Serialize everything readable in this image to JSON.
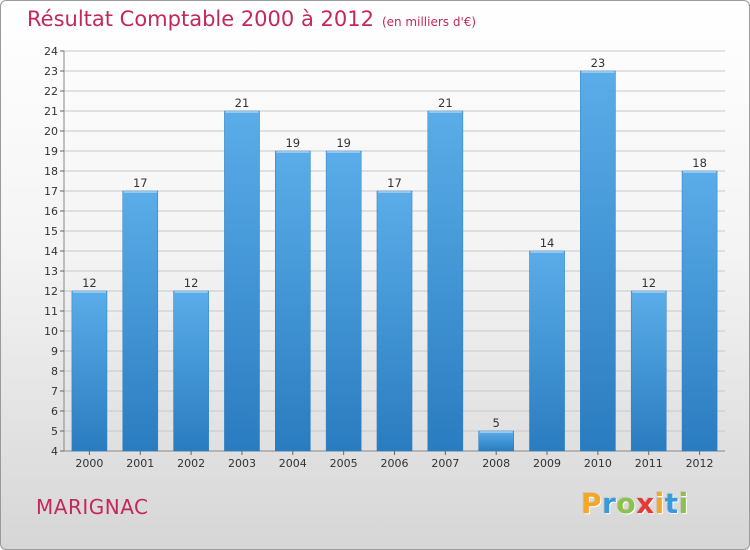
{
  "title": "Résultat Comptable 2000 à 2012",
  "subtitle": "(en milliers d'€)",
  "city": "MARIGNAC",
  "logo": {
    "letters": [
      "P",
      "r",
      "o",
      "x",
      "i",
      "t",
      "i"
    ],
    "colors": [
      "#f5a623",
      "#3a9ad9",
      "#8bc34a",
      "#e53935",
      "#f5a623",
      "#3a9ad9",
      "#8bc34a"
    ]
  },
  "colors": {
    "accent": "#c4275c",
    "bar_light": "#5aade8",
    "bar_dark": "#2a7cc0",
    "grid": "#c8c8c8"
  },
  "chart_data": {
    "type": "bar",
    "title": "Résultat Comptable 2000 à 2012",
    "subtitle": "(en milliers d'€)",
    "categories": [
      "2000",
      "2001",
      "2002",
      "2003",
      "2004",
      "2005",
      "2006",
      "2007",
      "2008",
      "2009",
      "2010",
      "2011",
      "2012"
    ],
    "values": [
      12,
      17,
      12,
      21,
      19,
      19,
      17,
      21,
      5,
      14,
      23,
      12,
      18
    ],
    "xlabel": "",
    "ylabel": "",
    "ylim": [
      4,
      24
    ],
    "yticks": [
      4,
      5,
      6,
      7,
      8,
      9,
      10,
      11,
      12,
      13,
      14,
      15,
      16,
      17,
      18,
      19,
      20,
      21,
      22,
      23,
      24
    ],
    "grid": true,
    "data_labels": true
  }
}
